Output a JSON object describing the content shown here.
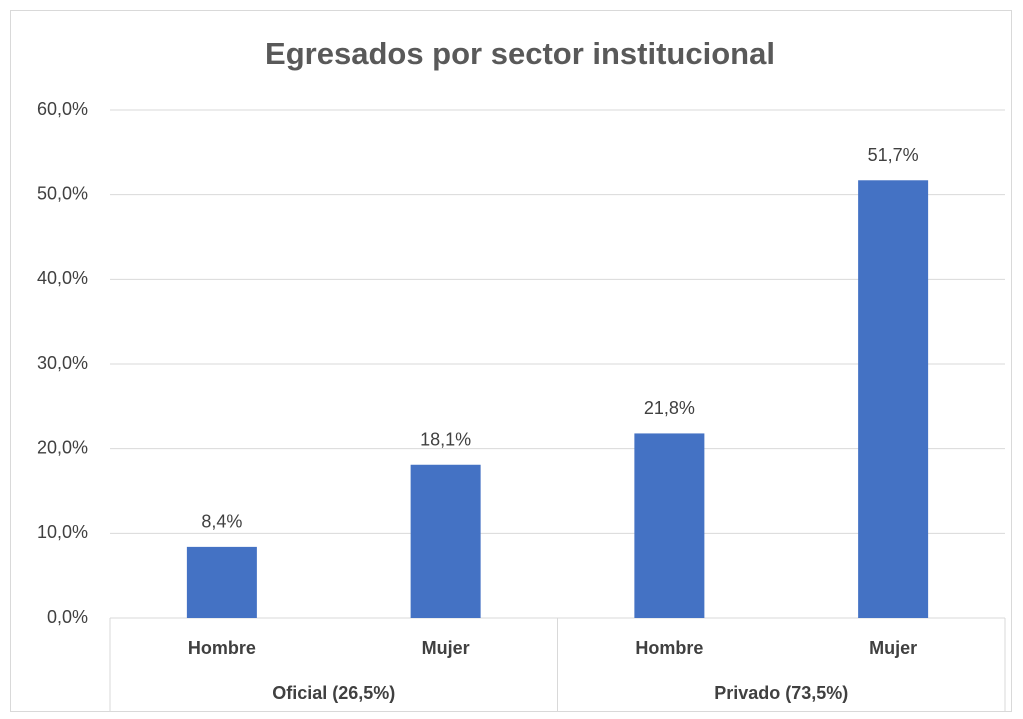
{
  "chart_data": {
    "type": "bar",
    "title": "Egresados por sector institucional",
    "categories": [
      "Hombre",
      "Mujer",
      "Hombre",
      "Mujer"
    ],
    "groups": [
      "Oficial (26,5%)",
      "Privado (73,5%)"
    ],
    "values": [
      8.4,
      18.1,
      21.8,
      51.7
    ],
    "value_labels": [
      "8,4%",
      "18,1%",
      "21,8%",
      "51,7%"
    ],
    "color": "#4472c4",
    "ylim": [
      0,
      60
    ],
    "yticks": [
      {
        "value": 0,
        "label": "0,0%"
      },
      {
        "value": 10,
        "label": "10,0%"
      },
      {
        "value": 20,
        "label": "20,0%"
      },
      {
        "value": 30,
        "label": "30,0%"
      },
      {
        "value": 40,
        "label": "40,0%"
      },
      {
        "value": 50,
        "label": "50,0%"
      },
      {
        "value": 60,
        "label": "60,0%"
      }
    ],
    "grid": true
  }
}
